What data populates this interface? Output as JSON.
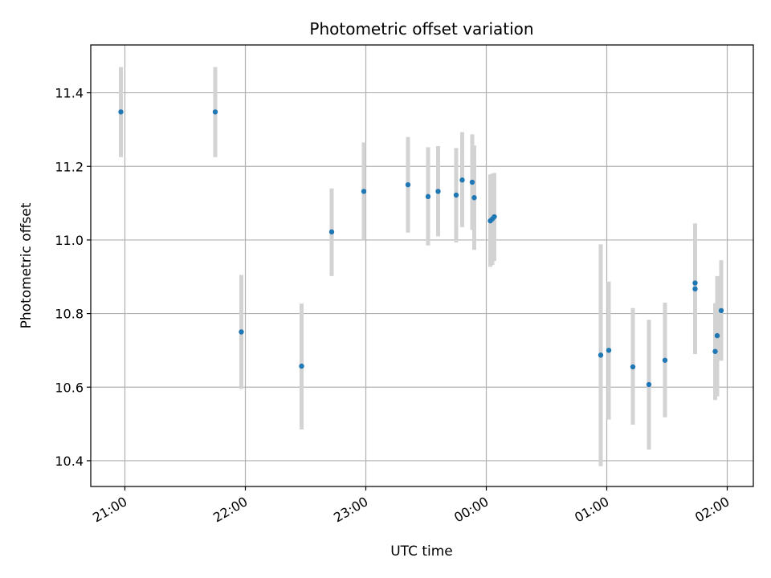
{
  "chart_data": {
    "type": "scatter",
    "title": "Photometric offset variation",
    "xlabel": "UTC time",
    "ylabel": "Photometric offset",
    "x_axis": "time (hours, UTC)",
    "xlim": [
      "20:43",
      "02:13"
    ],
    "ylim": [
      10.33,
      11.53
    ],
    "grid": true,
    "x_ticks": [
      {
        "value": "21:00",
        "label": "21:00"
      },
      {
        "value": "22:00",
        "label": "22:00"
      },
      {
        "value": "23:00",
        "label": "23:00"
      },
      {
        "value": "00:00",
        "label": "00:00"
      },
      {
        "value": "01:00",
        "label": "01:00"
      },
      {
        "value": "02:00",
        "label": "02:00"
      }
    ],
    "y_ticks": [
      {
        "value": 10.4,
        "label": "10.4"
      },
      {
        "value": 10.6,
        "label": "10.6"
      },
      {
        "value": 10.8,
        "label": "10.8"
      },
      {
        "value": 11.0,
        "label": "11.0"
      },
      {
        "value": 11.2,
        "label": "11.2"
      },
      {
        "value": 11.4,
        "label": "11.4"
      }
    ],
    "colors": {
      "marker": "#1f77b4",
      "errorbar": "#d3d3d3",
      "grid": "#b0b0b0"
    },
    "points": [
      {
        "x": "20:58",
        "y": 11.348,
        "ylo": 11.225,
        "yhi": 11.47
      },
      {
        "x": "21:45",
        "y": 11.348,
        "ylo": 11.225,
        "yhi": 11.47
      },
      {
        "x": "21:58",
        "y": 10.75,
        "ylo": 10.595,
        "yhi": 10.905
      },
      {
        "x": "22:28",
        "y": 10.657,
        "ylo": 10.485,
        "yhi": 10.827
      },
      {
        "x": "22:43",
        "y": 11.022,
        "ylo": 10.902,
        "yhi": 11.14
      },
      {
        "x": "22:59",
        "y": 11.132,
        "ylo": 11.0,
        "yhi": 11.265
      },
      {
        "x": "23:21",
        "y": 11.15,
        "ylo": 11.02,
        "yhi": 11.28
      },
      {
        "x": "23:31",
        "y": 11.118,
        "ylo": 10.985,
        "yhi": 11.252
      },
      {
        "x": "23:36",
        "y": 11.132,
        "ylo": 11.01,
        "yhi": 11.255
      },
      {
        "x": "23:45",
        "y": 11.122,
        "ylo": 10.993,
        "yhi": 11.25
      },
      {
        "x": "23:48",
        "y": 11.163,
        "ylo": 11.035,
        "yhi": 11.293
      },
      {
        "x": "23:53",
        "y": 11.157,
        "ylo": 11.027,
        "yhi": 11.287
      },
      {
        "x": "23:54",
        "y": 11.115,
        "ylo": 10.973,
        "yhi": 11.257
      },
      {
        "x": "00:02",
        "y": 11.052,
        "ylo": 10.927,
        "yhi": 11.178
      },
      {
        "x": "00:03",
        "y": 11.057,
        "ylo": 10.932,
        "yhi": 11.18
      },
      {
        "x": "00:04",
        "y": 11.063,
        "ylo": 10.943,
        "yhi": 11.182
      },
      {
        "x": "00:57",
        "y": 10.687,
        "ylo": 10.385,
        "yhi": 10.988
      },
      {
        "x": "01:01",
        "y": 10.7,
        "ylo": 10.512,
        "yhi": 10.887
      },
      {
        "x": "01:13",
        "y": 10.655,
        "ylo": 10.498,
        "yhi": 10.815
      },
      {
        "x": "01:21",
        "y": 10.607,
        "ylo": 10.43,
        "yhi": 10.783
      },
      {
        "x": "01:29",
        "y": 10.673,
        "ylo": 10.518,
        "yhi": 10.83
      },
      {
        "x": "01:44",
        "y": 10.883,
        "ylo": 10.723,
        "yhi": 11.043
      },
      {
        "x": "01:44",
        "y": 10.867,
        "ylo": 10.69,
        "yhi": 11.045
      },
      {
        "x": "01:54",
        "y": 10.697,
        "ylo": 10.565,
        "yhi": 10.828
      },
      {
        "x": "01:55",
        "y": 10.74,
        "ylo": 10.575,
        "yhi": 10.902
      },
      {
        "x": "01:57",
        "y": 10.808,
        "ylo": 10.672,
        "yhi": 10.945
      }
    ]
  }
}
